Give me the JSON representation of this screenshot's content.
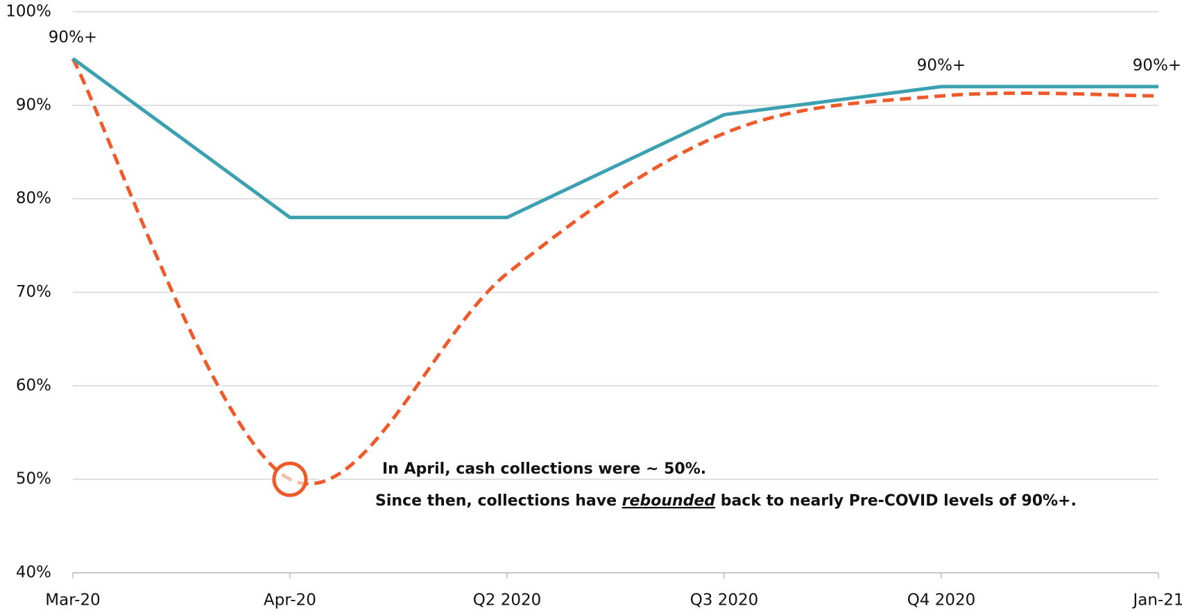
{
  "chart_data": {
    "type": "line",
    "categories": [
      "Mar-20",
      "Apr-20",
      "Q2 2020",
      "Q3 2020",
      "Q4 2020",
      "Jan-21"
    ],
    "series": [
      {
        "color": "#3ba1b1",
        "dash": false,
        "smooth": false,
        "values": [
          95,
          78,
          78,
          89,
          92,
          92
        ],
        "value_labels": [
          "90%+",
          null,
          null,
          null,
          "90%+",
          "90%+"
        ]
      },
      {
        "color": "#ee5a2a",
        "dash": true,
        "smooth": true,
        "values": [
          95,
          50,
          72,
          87,
          91,
          91
        ]
      }
    ],
    "ylim": [
      40,
      100
    ],
    "yticks": [
      {
        "value": 40,
        "label": "40%"
      },
      {
        "value": 50,
        "label": "50%"
      },
      {
        "value": 60,
        "label": "60%"
      },
      {
        "value": 70,
        "label": "70%"
      },
      {
        "value": 80,
        "label": "80%"
      },
      {
        "value": 90,
        "label": "90%"
      },
      {
        "value": 100,
        "label": "100%"
      }
    ],
    "grid": true,
    "highlight": {
      "series": 1,
      "index": 1,
      "color": "#ee5a2a"
    },
    "annotations": [
      [
        "In April, cash collections were ~ 50%."
      ],
      [
        "Since then, collections have ",
        "rebounded",
        " back to nearly Pre-COVID levels of 90%+."
      ]
    ]
  }
}
